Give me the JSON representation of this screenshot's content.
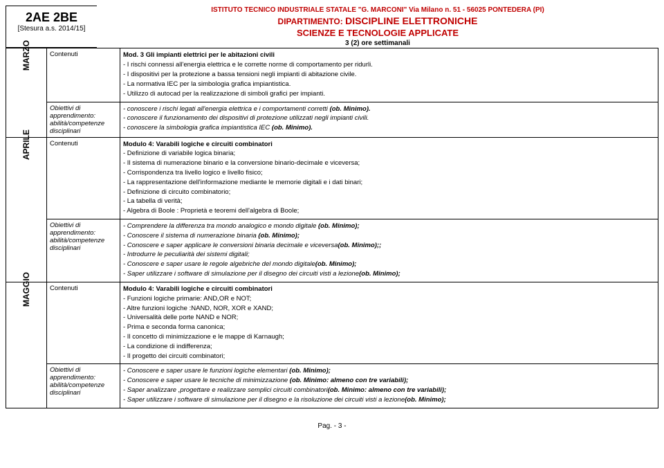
{
  "header": {
    "institute": "ISTITUTO TECNICO INDUSTRIALE STATALE \"G. MARCONI\" Via Milano n. 51 - 56025 PONTEDERA (PI)",
    "dept_pre": "DIPARTIMENTO: ",
    "dept": "DISCIPLINE ELETTRONICHE",
    "subject": "SCIENZE E TECNOLOGIE APPLICATE",
    "hours": "3 (2) ore settimanali"
  },
  "left": {
    "class": "2AE 2BE",
    "stesura": "[Stesura a.s. 2014/15]"
  },
  "labels": {
    "contenuti": "Contenuti",
    "obiettivi_l1": "Obiettivi di",
    "obiettivi_l2": "apprendimento:",
    "obiettivi_l3": "abilità/competenze",
    "obiettivi_l4": "disciplinari"
  },
  "months": {
    "marzo": "MARZO",
    "aprile": "APRILE",
    "maggio": "MAGGIO"
  },
  "marzo": {
    "cont_title": "Mod. 3 Gli impianti elettrici per le abitazioni civili",
    "cont": [
      "- I rischi connessi all'energia elettrica e le corrette norme di comportamento per ridurli.",
      "- I dispositivi per la protezione a bassa tensioni negli impianti di abitazione civile.",
      "- La normativa IEC per la simbologia grafica impiantistica.",
      "- Utilizzo di autocad per la realizzazione di simboli grafici per impianti."
    ],
    "ob": [
      {
        "pre": "- conoscere i rischi legati all'energia elettrica  e i comportamenti corretti ",
        "bold": "(ob. Minimo)."
      },
      {
        "pre": "- conoscere il funzionamento dei dispositivi di protezione utilizzati negli impianti civili.",
        "bold": ""
      },
      {
        "pre": "- conoscere la simbologia grafica impiantistica IEC ",
        "bold": "(ob. Minimo)."
      }
    ]
  },
  "aprile": {
    "cont_title": "Modulo 4: Varabili logiche e circuiti combinatori",
    "cont": [
      "- Definizione di variabile logica binaria;",
      "- Il sistema di numerazione binario e la conversione binario-decimale e viceversa;",
      "- Corrispondenza tra  livello logico e livello fisico;",
      "- La rappresentazione dell'informazione mediante le memorie digitali e i dati binari;",
      "- Definizione di circuito combinatorio;",
      "- La tabella di verità;",
      "- Algebra di Boole : Proprietà e teoremi dell'algebra di Boole;"
    ],
    "ob": [
      {
        "pre": "- Comprendere la differenza tra mondo analogico e mondo digitale ",
        "bold": "(ob. Minimo);"
      },
      {
        "pre": "- Conoscere il sistema di numerazione binaria ",
        "bold": "(ob. Minimo);"
      },
      {
        "pre": "- Conoscere e saper applicare le conversioni binaria decimale e viceversa",
        "bold": "(ob. Minimo);;"
      },
      {
        "pre": "- Introdurre le peculiarità dei sistemi digitali;",
        "bold": ""
      },
      {
        "pre": "- Conoscere e saper usare le regole algebriche del mondo digitale",
        "bold": "(ob. Minimo);"
      },
      {
        "pre": "- Saper utilizzare i software di simulazione per il disegno dei circuiti visti a lezione",
        "bold": "(ob. Minimo);"
      }
    ]
  },
  "maggio": {
    "cont_title": "Modulo 4: Varabili logiche e circuiti combinatori",
    "cont": [
      "- Funzioni logiche primarie: AND,OR e NOT;",
      "- Altre funzioni logiche :NAND, NOR, XOR e XAND;",
      "- Universalità delle porte NAND e NOR;",
      "- Prima e seconda forma canonica;",
      "- Il concetto di minimizzazione e le mappe di Karnaugh;",
      "- La condizione di indifferenza;",
      "- Il progetto dei circuiti combinatori;"
    ],
    "ob": [
      {
        "pre": "- Conoscere e saper usare le funzioni logiche elementari ",
        "bold": "(ob. Minimo);"
      },
      {
        "pre": "- Conoscere e saper usare le tecniche di minimizzazione ",
        "bold": "(ob. Minimo: almeno con tre variabili);"
      },
      {
        "pre": "- Saper analizzare ,progettare e realizzare semplici circuiti combinatori",
        "bold": "(ob. Minimo: almeno con tre variabili);"
      },
      {
        "pre": "- Saper utilizzare i software di simulazione per il disegno e la risoluzione  dei circuiti visti a lezione",
        "bold": "(ob. Minimo);"
      }
    ]
  },
  "footer": "Pag.  - 3 -"
}
